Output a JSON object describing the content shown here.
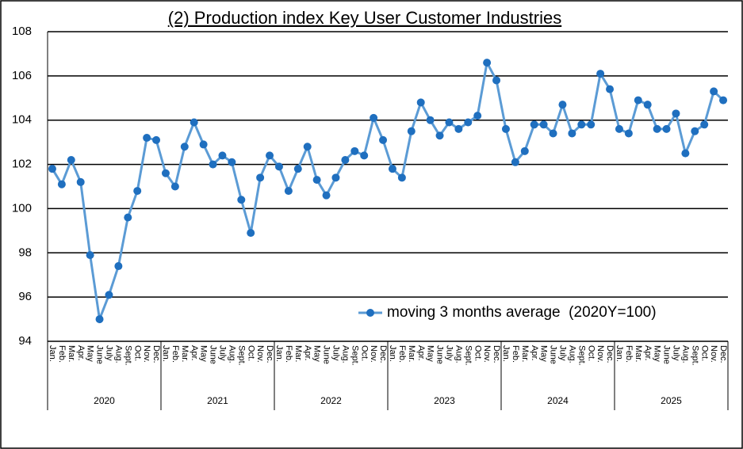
{
  "chart_data": {
    "type": "line",
    "title": "(2) Production index Key User Customer Industries",
    "categories": [
      "Jan.",
      "Feb.",
      "Mar.",
      "Apr.",
      "May",
      "June",
      "July",
      "Aug.",
      "Sept.",
      "Oct.",
      "Nov.",
      "Dec.",
      "Jan.",
      "Feb.",
      "Mar.",
      "Apr.",
      "May",
      "June",
      "July",
      "Aug.",
      "Sept.",
      "Oct.",
      "Nov.",
      "Dec.",
      "Jan.",
      "Feb.",
      "Mar.",
      "Apr.",
      "May",
      "June",
      "July",
      "Aug.",
      "Sept.",
      "Oct.",
      "Nov.",
      "Dec.",
      "Jan.",
      "Feb.",
      "Mar.",
      "Apr.",
      "May",
      "June",
      "July",
      "Aug.",
      "Sept.",
      "Oct.",
      "Nov.",
      "Dec.",
      "Jan.",
      "Feb.",
      "Mar.",
      "Apr.",
      "May",
      "June",
      "July",
      "Aug.",
      "Sept.",
      "Oct.",
      "Nov.",
      "Dec.",
      "Jan.",
      "Feb.",
      "Mar.",
      "Apr.",
      "May",
      "June",
      "July",
      "Aug.",
      "Sept.",
      "Oct.",
      "Nov.",
      "Dec."
    ],
    "year_groups": [
      "2020",
      "2021",
      "2022",
      "2023",
      "2024",
      "2025"
    ],
    "series": [
      {
        "name": "moving 3 months average  (2020Y=100)",
        "color": "#5b9bd5",
        "marker_color": "#1f6fbf",
        "values": [
          101.8,
          101.1,
          102.2,
          101.2,
          97.9,
          95.0,
          96.1,
          97.4,
          99.6,
          100.8,
          103.2,
          103.1,
          101.6,
          101.0,
          102.8,
          103.9,
          102.9,
          102.0,
          102.4,
          102.1,
          100.4,
          98.9,
          101.4,
          102.4,
          101.9,
          100.8,
          101.8,
          102.8,
          101.3,
          100.6,
          101.4,
          102.2,
          102.6,
          102.4,
          104.1,
          103.1,
          101.8,
          101.4,
          103.5,
          104.8,
          104.0,
          103.3,
          103.9,
          103.6,
          103.9,
          104.2,
          106.6,
          105.8,
          103.6,
          102.1,
          102.6,
          103.8,
          103.8,
          103.4,
          104.7,
          103.4,
          103.8,
          103.8,
          106.1,
          105.4,
          103.6,
          103.4,
          104.9,
          104.7,
          103.6,
          103.6,
          104.3,
          102.5,
          103.5,
          103.8,
          105.3,
          104.9
        ]
      }
    ],
    "ylim": [
      94,
      108
    ],
    "yticks": [
      94,
      96,
      98,
      100,
      102,
      104,
      106,
      108
    ],
    "grid": true
  }
}
